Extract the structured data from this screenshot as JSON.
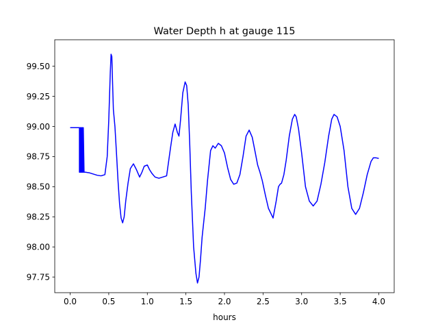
{
  "chart_data": {
    "type": "line",
    "title": "Water Depth h at gauge 115",
    "xlabel": "hours",
    "ylabel": "",
    "xlim": [
      -0.2,
      4.2
    ],
    "ylim": [
      97.62,
      99.72
    ],
    "xticks": [
      0.0,
      0.5,
      1.0,
      1.5,
      2.0,
      2.5,
      3.0,
      3.5,
      4.0
    ],
    "xtick_labels": [
      "0.0",
      "0.5",
      "1.0",
      "1.5",
      "2.0",
      "2.5",
      "3.0",
      "3.5",
      "4.0"
    ],
    "yticks": [
      97.75,
      98.0,
      98.25,
      98.5,
      98.75,
      99.0,
      99.25,
      99.5
    ],
    "ytick_labels": [
      "97.75",
      "98.00",
      "98.25",
      "98.50",
      "98.75",
      "99.00",
      "99.25",
      "99.50"
    ],
    "grid": false,
    "color": "#0000ff",
    "series": [
      {
        "x": [
          0.0,
          0.11,
          0.12,
          0.12,
          0.13,
          0.13,
          0.14,
          0.14,
          0.15,
          0.15,
          0.16,
          0.16,
          0.17,
          0.17,
          0.18,
          0.2,
          0.25,
          0.3,
          0.35,
          0.4,
          0.45,
          0.48,
          0.5,
          0.52,
          0.53,
          0.54,
          0.55,
          0.56,
          0.58,
          0.6,
          0.62,
          0.64,
          0.66,
          0.68,
          0.7,
          0.72,
          0.75,
          0.78,
          0.82,
          0.86,
          0.9,
          0.93,
          0.96,
          1.0,
          1.03,
          1.06,
          1.1,
          1.15,
          1.2,
          1.25,
          1.3,
          1.33,
          1.36,
          1.39,
          1.41,
          1.43,
          1.46,
          1.49,
          1.51,
          1.53,
          1.55,
          1.57,
          1.6,
          1.63,
          1.65,
          1.67,
          1.69,
          1.71,
          1.73,
          1.75,
          1.78,
          1.82,
          1.85,
          1.88,
          1.92,
          1.96,
          2.0,
          2.04,
          2.08,
          2.12,
          2.16,
          2.2,
          2.24,
          2.28,
          2.32,
          2.36,
          2.4,
          2.43,
          2.46,
          2.49,
          2.53,
          2.57,
          2.6,
          2.63,
          2.67,
          2.7,
          2.72,
          2.74,
          2.77,
          2.8,
          2.84,
          2.88,
          2.91,
          2.93,
          2.96,
          3.0,
          3.05,
          3.1,
          3.15,
          3.2,
          3.25,
          3.3,
          3.35,
          3.39,
          3.42,
          3.46,
          3.5,
          3.55,
          3.6,
          3.65,
          3.7,
          3.75,
          3.8,
          3.85,
          3.9,
          3.93,
          3.96,
          4.0
        ],
        "y": [
          98.99,
          98.99,
          98.99,
          98.62,
          98.62,
          98.99,
          98.99,
          98.62,
          98.62,
          98.99,
          98.99,
          98.62,
          98.62,
          98.99,
          98.62,
          98.62,
          98.615,
          98.605,
          98.595,
          98.59,
          98.6,
          98.75,
          99.05,
          99.45,
          99.6,
          99.58,
          99.35,
          99.14,
          99.0,
          98.78,
          98.55,
          98.36,
          98.24,
          98.2,
          98.25,
          98.38,
          98.53,
          98.65,
          98.69,
          98.64,
          98.58,
          98.62,
          98.67,
          98.68,
          98.64,
          98.61,
          98.58,
          98.57,
          98.58,
          98.59,
          98.82,
          98.95,
          99.02,
          98.95,
          98.92,
          99.05,
          99.28,
          99.37,
          99.34,
          99.18,
          98.85,
          98.45,
          98.0,
          97.78,
          97.7,
          97.75,
          97.9,
          98.08,
          98.2,
          98.32,
          98.55,
          98.8,
          98.84,
          98.82,
          98.86,
          98.84,
          98.78,
          98.66,
          98.56,
          98.52,
          98.53,
          98.6,
          98.75,
          98.92,
          98.97,
          98.91,
          98.78,
          98.68,
          98.62,
          98.55,
          98.43,
          98.32,
          98.28,
          98.24,
          98.38,
          98.5,
          98.52,
          98.53,
          98.6,
          98.72,
          98.92,
          99.06,
          99.1,
          99.08,
          98.98,
          98.78,
          98.5,
          98.38,
          98.34,
          98.38,
          98.52,
          98.7,
          98.92,
          99.06,
          99.1,
          99.08,
          99.0,
          98.8,
          98.5,
          98.32,
          98.27,
          98.32,
          98.45,
          98.6,
          98.71,
          98.74,
          98.74,
          98.735
        ]
      }
    ]
  }
}
